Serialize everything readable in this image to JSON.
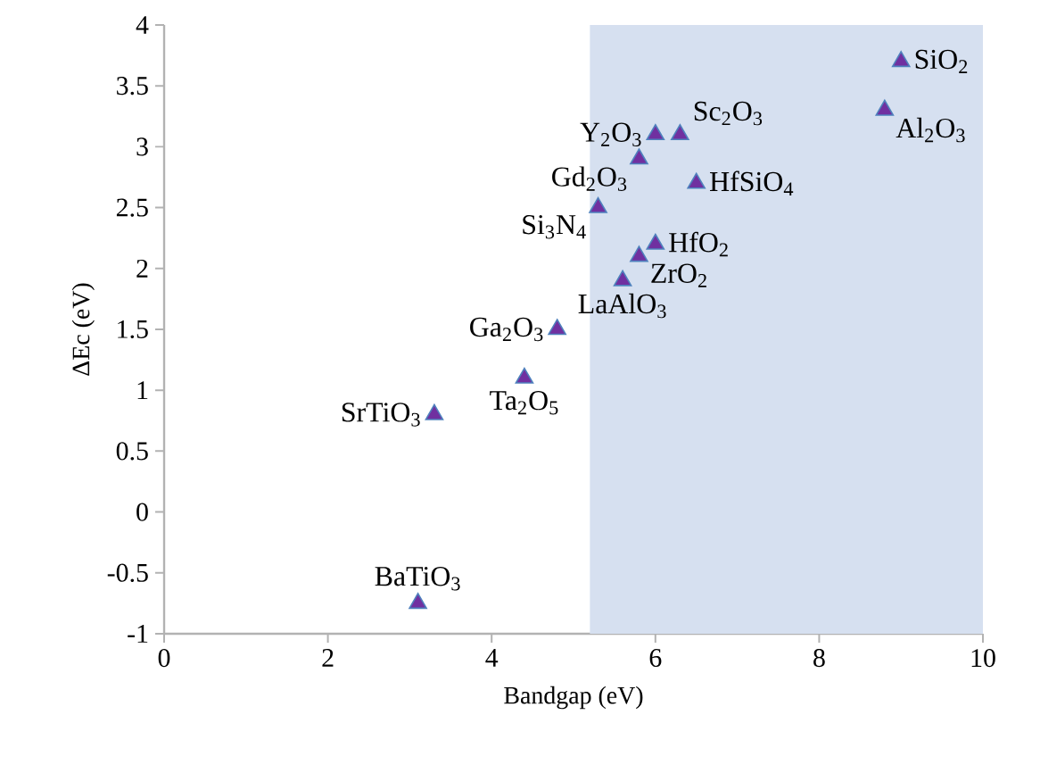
{
  "chart_data": {
    "type": "scatter",
    "xlabel": "Bandgap (eV)",
    "ylabel": "ΔEc (eV)",
    "xlim": [
      0,
      10
    ],
    "ylim": [
      -1,
      4
    ],
    "xticks": [
      0,
      2,
      4,
      6,
      8,
      10
    ],
    "yticks": [
      -1,
      -0.5,
      0,
      0.5,
      1,
      1.5,
      2,
      2.5,
      3,
      3.5,
      4
    ],
    "grid": false,
    "marker": "triangle",
    "series": [
      {
        "color": "#7030a0",
        "x": [
          9,
          8.8,
          6,
          6.3,
          5.8,
          6.5,
          5.3,
          6,
          5.8,
          5.6,
          4.8,
          4.4,
          3.3,
          3.1
        ],
        "values": [
          3.7,
          3.3,
          3.1,
          3.1,
          2.9,
          2.7,
          2.5,
          2.2,
          2.1,
          1.9,
          1.5,
          1.1,
          0.8,
          -0.75
        ]
      }
    ],
    "bands": [
      {
        "axis": "x",
        "from": 5.2,
        "to": 10,
        "color": "#d6e0f0"
      }
    ],
    "annotations": [
      {
        "text": "SiO$_{2}$",
        "x": 9,
        "y": 3.7
      },
      {
        "text": "Al$_{2}$O$_{3}$",
        "x": 8.8,
        "y": 3.3
      },
      {
        "text": "Y$_{2}$O$_{3}$",
        "x": 6,
        "y": 3.1
      },
      {
        "text": "Sc$_{2}$O$_{3}$",
        "x": 6.3,
        "y": 3.1
      },
      {
        "text": "Gd$_{2}$O$_{3}$",
        "x": 5.8,
        "y": 2.9
      },
      {
        "text": "HfSiO$_{4}$",
        "x": 6.5,
        "y": 2.7
      },
      {
        "text": "Si$_{3}$N$_{4}$",
        "x": 5.3,
        "y": 2.5
      },
      {
        "text": "HfO$_{2}$",
        "x": 6,
        "y": 2.2
      },
      {
        "text": "ZrO$_{2}$",
        "x": 5.8,
        "y": 2.1
      },
      {
        "text": "LaAlO$_{3}$",
        "x": 5.6,
        "y": 1.9
      },
      {
        "text": "Ga$_{2}$O$_{3}$",
        "x": 4.8,
        "y": 1.5
      },
      {
        "text": "Ta$_{2}$O$_{5}$",
        "x": 4.4,
        "y": 1.1
      },
      {
        "text": "SrTiO$_{3}$",
        "x": 3.3,
        "y": 0.8
      },
      {
        "text": "BaTiO$_{3}$",
        "x": 3.1,
        "y": -0.75
      }
    ]
  }
}
